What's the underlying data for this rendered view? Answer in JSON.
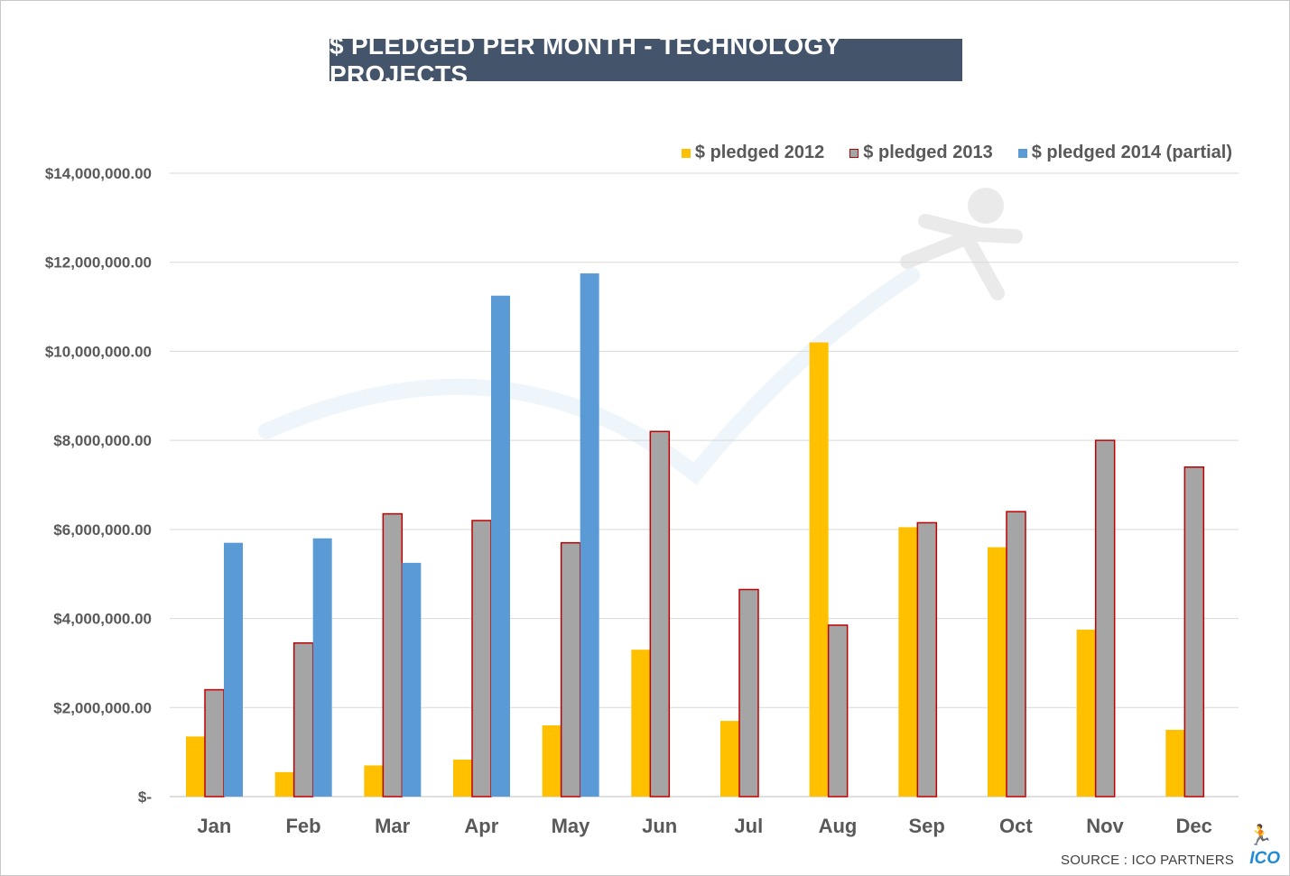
{
  "chart_data": {
    "type": "bar",
    "title": "$ PLEDGED PER MONTH - TECHNOLOGY PROJECTS",
    "categories": [
      "Jan",
      "Feb",
      "Mar",
      "Apr",
      "May",
      "Jun",
      "Jul",
      "Aug",
      "Sep",
      "Oct",
      "Nov",
      "Dec"
    ],
    "series": [
      {
        "name": "$ pledged 2012",
        "color": "#ffc000",
        "border": "#ffc000",
        "values": [
          1350000,
          550000,
          700000,
          830000,
          1600000,
          3300000,
          1700000,
          10200000,
          6050000,
          5600000,
          3750000,
          1500000
        ]
      },
      {
        "name": "$ pledged 2013",
        "color": "#a5a5a5",
        "border": "#c00000",
        "values": [
          2400000,
          3450000,
          6350000,
          6200000,
          5700000,
          8200000,
          4650000,
          3850000,
          6150000,
          6400000,
          8000000,
          7400000
        ]
      },
      {
        "name": "$ pledged 2014 (partial)",
        "color": "#5b9bd5",
        "border": "#5b9bd5",
        "values": [
          5700000,
          5800000,
          5250000,
          11250000,
          11750000,
          null,
          null,
          null,
          null,
          null,
          null,
          null
        ]
      }
    ],
    "yticks": [
      "$-",
      "$2,000,000.00",
      "$4,000,000.00",
      "$6,000,000.00",
      "$8,000,000.00",
      "$10,000,000.00",
      "$12,000,000.00",
      "$14,000,000.00"
    ],
    "ylim": [
      0,
      14000000
    ],
    "ytick_step": 2000000,
    "xlabel": "",
    "ylabel": "",
    "grid": true,
    "legend_position": "top-right"
  },
  "footer": {
    "source": "SOURCE : ICO PARTNERS",
    "logo_text": "ICO"
  },
  "colors": {
    "title_bg": "#44546a",
    "grid": "#d9d9d9",
    "axis_text": "#595959"
  }
}
